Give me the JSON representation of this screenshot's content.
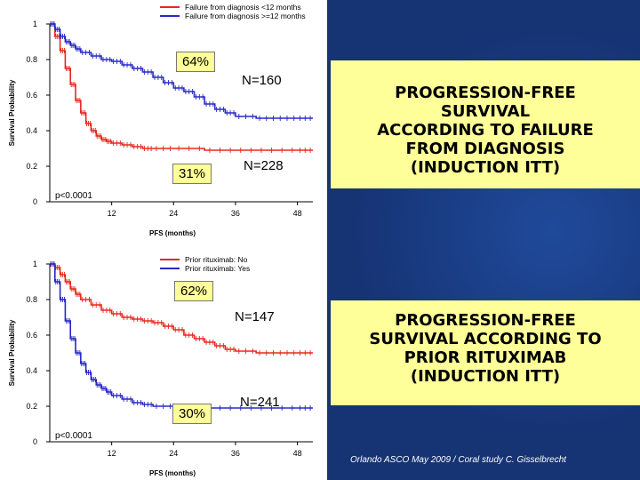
{
  "panels": [
    {
      "percent_label_top": "64%",
      "percent_label_bottom": "31%",
      "n_upper": "N=160",
      "n_lower": "N=228",
      "title": "PROGRESSION-FREE SURVIVAL ACCORDING TO FAILURE FROM DIAGNOSIS (INDUCTION ITT)",
      "title_lines": [
        "PROGRESSION-FREE",
        "SURVIVAL",
        "ACCORDING TO FAILURE",
        "FROM DIAGNOSIS",
        "(INDUCTION ITT)"
      ]
    },
    {
      "percent_label_top": "62%",
      "percent_label_bottom": "30%",
      "n_upper": "N=147",
      "n_lower": "N=241",
      "title": "PROGRESSION-FREE SURVIVAL ACCORDING TO PRIOR RITUXIMAB (INDUCTION ITT)",
      "title_lines": [
        "PROGRESSION-FREE",
        "SURVIVAL ACCORDING TO",
        "PRIOR RITUXIMAB",
        "(INDUCTION ITT)"
      ]
    }
  ],
  "footer": "Orlando ASCO May 2009 / Coral study  C. Gisselbrecht",
  "colors": {
    "red": "#e8281e",
    "blue": "#2828c8",
    "right_bg": "#163374",
    "callout": "#ffff99"
  },
  "chart_data": [
    {
      "type": "line",
      "xlabel": "PFS (months)",
      "ylabel": "Survival Probability",
      "xlim": [
        0,
        51
      ],
      "ylim": [
        0,
        1
      ],
      "xticks": [
        12,
        24,
        36,
        48
      ],
      "yticks": [
        "0",
        "0.2",
        "0.4",
        "0.6",
        "0.8",
        "1"
      ],
      "grid": false,
      "legend": "top-right",
      "annotation": "p<0.0001",
      "series": [
        {
          "name": "Failure from diagnosis <12 months",
          "color": "#e8281e",
          "x": [
            0,
            1,
            2,
            3,
            4,
            5,
            6,
            7,
            8,
            9,
            10,
            11,
            12,
            14,
            16,
            18,
            20,
            24,
            30,
            36,
            42,
            48,
            51
          ],
          "y": [
            1.0,
            0.93,
            0.85,
            0.75,
            0.66,
            0.57,
            0.5,
            0.44,
            0.4,
            0.37,
            0.35,
            0.34,
            0.33,
            0.32,
            0.31,
            0.3,
            0.3,
            0.3,
            0.29,
            0.29,
            0.29,
            0.29,
            0.29
          ]
        },
        {
          "name": "Failure from diagnosis >=12 months",
          "color": "#2828c8",
          "x": [
            0,
            1,
            2,
            3,
            4,
            5,
            6,
            8,
            10,
            12,
            14,
            16,
            18,
            20,
            22,
            24,
            26,
            28,
            30,
            32,
            34,
            36,
            40,
            44,
            48,
            51
          ],
          "y": [
            1.0,
            0.97,
            0.93,
            0.9,
            0.88,
            0.86,
            0.84,
            0.82,
            0.8,
            0.79,
            0.77,
            0.75,
            0.73,
            0.7,
            0.67,
            0.64,
            0.62,
            0.59,
            0.55,
            0.52,
            0.5,
            0.48,
            0.47,
            0.47,
            0.47,
            0.47
          ]
        }
      ]
    },
    {
      "type": "line",
      "xlabel": "PFS (months)",
      "ylabel": "Survival Probability",
      "xlim": [
        0,
        51
      ],
      "ylim": [
        0,
        1
      ],
      "xticks": [
        12,
        24,
        36,
        48
      ],
      "yticks": [
        "0",
        "0.2",
        "0.4",
        "0.6",
        "0.8",
        "1"
      ],
      "grid": false,
      "legend": "top-right",
      "annotation": "p<0.0001",
      "series": [
        {
          "name": "Prior rituximab: No",
          "color": "#e8281e",
          "x": [
            0,
            1,
            2,
            3,
            4,
            5,
            6,
            8,
            10,
            12,
            14,
            16,
            18,
            20,
            22,
            24,
            26,
            28,
            30,
            32,
            34,
            36,
            40,
            44,
            48,
            51
          ],
          "y": [
            1.0,
            0.98,
            0.94,
            0.9,
            0.86,
            0.83,
            0.8,
            0.77,
            0.74,
            0.72,
            0.7,
            0.69,
            0.68,
            0.67,
            0.65,
            0.63,
            0.6,
            0.58,
            0.56,
            0.54,
            0.52,
            0.51,
            0.5,
            0.5,
            0.5,
            0.5
          ]
        },
        {
          "name": "Prior rituximab: Yes",
          "color": "#2828c8",
          "x": [
            0,
            1,
            2,
            3,
            4,
            5,
            6,
            7,
            8,
            9,
            10,
            11,
            12,
            14,
            16,
            18,
            20,
            24,
            30,
            36,
            42,
            48,
            51
          ],
          "y": [
            1.0,
            0.9,
            0.8,
            0.68,
            0.58,
            0.5,
            0.44,
            0.39,
            0.35,
            0.32,
            0.3,
            0.28,
            0.26,
            0.24,
            0.22,
            0.21,
            0.2,
            0.2,
            0.19,
            0.19,
            0.19,
            0.19,
            0.19
          ]
        }
      ]
    }
  ]
}
